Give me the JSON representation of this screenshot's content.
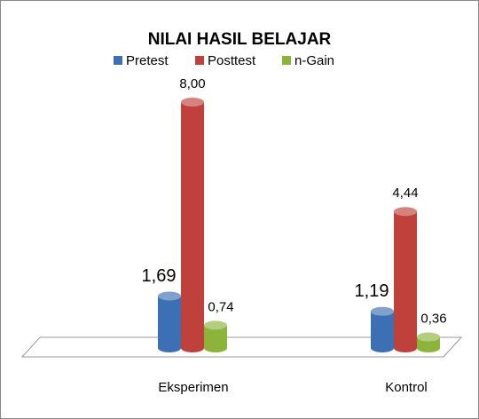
{
  "chart_data": {
    "type": "bar3d",
    "title": "NILAI HASIL BELAJAR",
    "categories": [
      "Eksperimen",
      "Kontrol"
    ],
    "series": [
      {
        "name": "Pretest",
        "color": "#3c6fb4",
        "values": [
          1.69,
          1.19
        ],
        "value_labels": [
          "1,69",
          "1,19"
        ]
      },
      {
        "name": "Posttest",
        "color": "#c0403c",
        "values": [
          8.0,
          4.44
        ],
        "value_labels": [
          "8,00",
          "4,44"
        ]
      },
      {
        "name": "n-Gain",
        "color": "#8cb33a",
        "values": [
          0.74,
          0.36
        ],
        "value_labels": [
          "0,74",
          "0,36"
        ]
      }
    ]
  }
}
